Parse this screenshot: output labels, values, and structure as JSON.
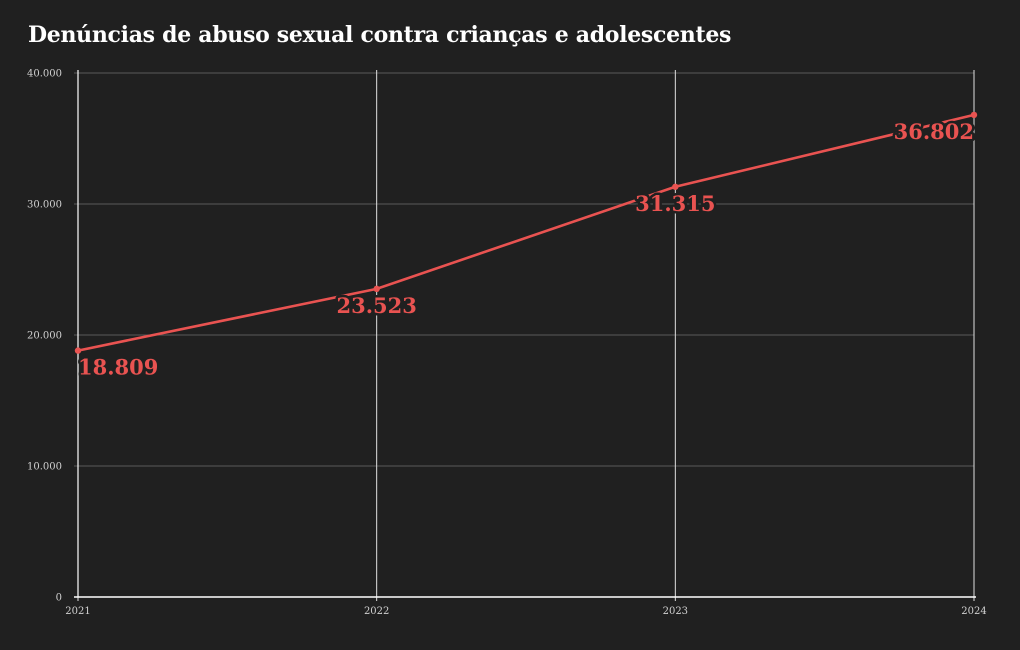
{
  "chart_data": {
    "type": "line",
    "title": "Denúncias de abuso sexual contra crianças e adolescentes",
    "xlabel": "",
    "ylabel": "",
    "x": [
      "2021",
      "2022",
      "2023",
      "2024"
    ],
    "series": [
      {
        "values": [
          18809,
          23523,
          31315,
          36802
        ],
        "labels": [
          "18.809",
          "23.523",
          "31.315",
          "36.802"
        ]
      }
    ],
    "ylim": [
      0,
      40000
    ],
    "yticks": [
      0,
      10000,
      20000,
      30000,
      40000
    ],
    "ytick_labels": [
      "0",
      "10.000",
      "20.000",
      "30.000",
      "40.000"
    ],
    "grid": true,
    "legend": "none"
  },
  "colors": {
    "background": "#202020",
    "line": "#e95351",
    "grid": "#5a5a5a",
    "vertical_grid": "#e0e0e0",
    "axis": "#ffffff",
    "text": "#ffffff",
    "tick_text": "#d0d0d0"
  }
}
